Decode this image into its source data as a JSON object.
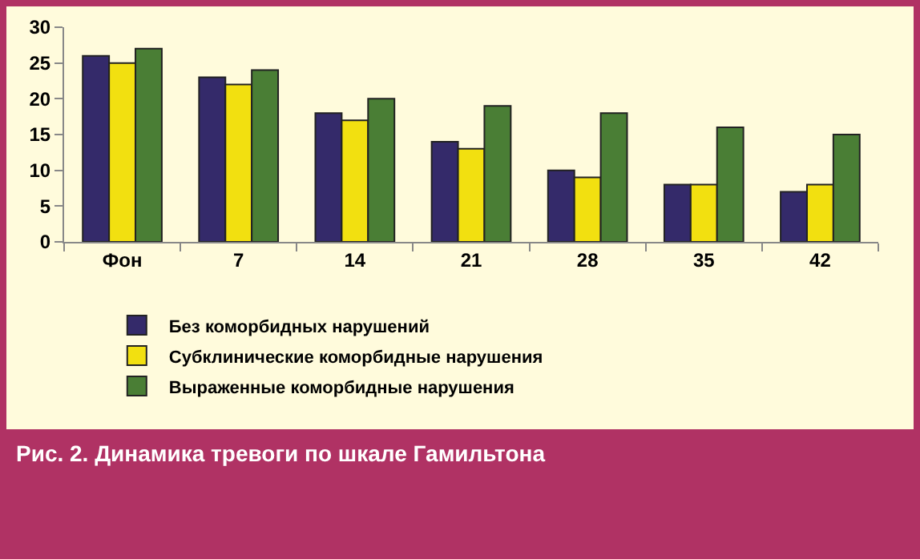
{
  "chart_data": {
    "type": "bar",
    "categories": [
      "Фон",
      "7",
      "14",
      "21",
      "28",
      "35",
      "42"
    ],
    "series": [
      {
        "name": "Без коморбидных нарушений",
        "color": "#342a6a",
        "values": [
          26,
          23,
          18,
          14,
          10,
          8,
          7
        ]
      },
      {
        "name": "Субклинические коморбидные нарушения",
        "color": "#f2e010",
        "values": [
          25,
          22,
          17,
          13,
          9,
          8,
          8
        ]
      },
      {
        "name": "Выраженные коморбидные нарушения",
        "color": "#4a7e35",
        "values": [
          27,
          24,
          20,
          19,
          18,
          16,
          15
        ]
      }
    ],
    "ylim": [
      0,
      30
    ],
    "yticks": [
      0,
      5,
      10,
      15,
      20,
      25,
      30
    ],
    "grid": false,
    "legend": "bottom",
    "annotations": [
      "Рис. 2. Динамика тревоги по шкале Гамильтона"
    ]
  }
}
